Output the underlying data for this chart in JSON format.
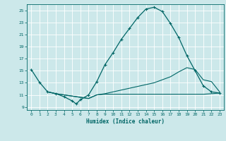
{
  "xlabel": "Humidex (Indice chaleur)",
  "xlim": [
    -0.5,
    23.5
  ],
  "ylim": [
    8.5,
    26.0
  ],
  "xticks": [
    0,
    1,
    2,
    3,
    4,
    5,
    6,
    7,
    8,
    9,
    10,
    11,
    12,
    13,
    14,
    15,
    16,
    17,
    18,
    19,
    20,
    21,
    22,
    23
  ],
  "yticks": [
    9,
    11,
    13,
    15,
    17,
    19,
    21,
    23,
    25
  ],
  "bg_color": "#cce8ea",
  "line_color": "#006666",
  "grid_color": "#ffffff",
  "curve1_x": [
    0,
    1,
    2,
    3,
    4,
    5,
    5.5,
    6,
    7,
    8,
    9,
    10,
    11,
    12,
    13,
    14,
    15,
    16,
    17,
    18,
    19,
    20,
    21,
    22,
    23
  ],
  "curve1_y": [
    15.2,
    13.1,
    11.5,
    11.2,
    10.7,
    10.0,
    9.5,
    10.2,
    11.0,
    13.2,
    16.0,
    18.0,
    20.2,
    22.0,
    23.8,
    25.2,
    25.5,
    24.8,
    22.8,
    20.5,
    17.5,
    15.0,
    12.5,
    11.5,
    11.3
  ],
  "curve2_x": [
    2,
    3,
    4,
    5,
    6,
    7,
    8,
    9,
    10,
    11,
    12,
    13,
    14,
    15,
    16,
    17,
    18,
    19,
    20,
    21,
    22,
    23
  ],
  "curve2_y": [
    11.5,
    11.2,
    11.0,
    10.8,
    10.6,
    10.4,
    11.0,
    11.1,
    11.1,
    11.1,
    11.1,
    11.1,
    11.1,
    11.1,
    11.1,
    11.1,
    11.1,
    11.1,
    11.1,
    11.1,
    11.2,
    11.3
  ],
  "curve3_x": [
    2,
    3,
    4,
    5,
    6,
    7,
    8,
    9,
    10,
    11,
    12,
    13,
    14,
    15,
    16,
    17,
    18,
    19,
    20,
    21,
    22,
    23
  ],
  "curve3_y": [
    11.5,
    11.2,
    11.0,
    10.8,
    10.6,
    10.4,
    11.0,
    11.2,
    11.5,
    11.8,
    12.1,
    12.4,
    12.7,
    13.0,
    13.5,
    14.0,
    14.8,
    15.5,
    15.2,
    13.5,
    13.2,
    11.5
  ]
}
